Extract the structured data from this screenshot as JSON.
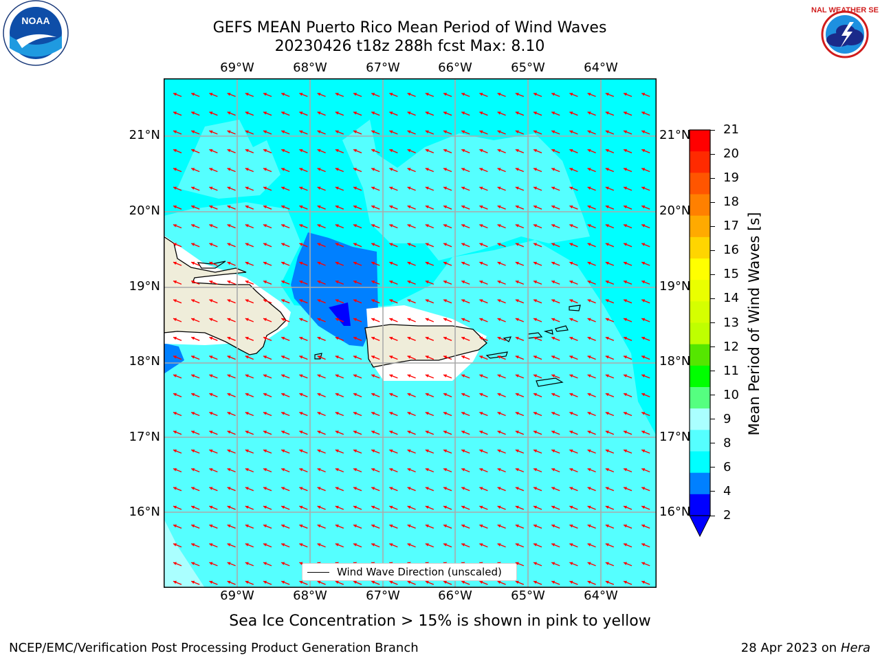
{
  "title": {
    "line1": "GEFS MEAN Puerto Rico Mean Period of Wind Waves",
    "line2": "20230426 t18z 288h fcst   Max: 8.10"
  },
  "map": {
    "lon_labels": [
      "69°W",
      "68°W",
      "67°W",
      "66°W",
      "65°W",
      "64°W"
    ],
    "lat_labels": [
      "21°N",
      "20°N",
      "19°N",
      "18°N",
      "17°N",
      "16°N"
    ],
    "legend_label": "Wind Wave Direction (unscaled)",
    "arrow_color": "#ff0000",
    "ocean_color": "#00ffff",
    "land_color": "#efedda"
  },
  "colorbar": {
    "label": "Mean Period of Wind Waves [s]",
    "ticks": [
      "21",
      "20",
      "19",
      "18",
      "17",
      "16",
      "15",
      "14",
      "13",
      "12",
      "11",
      "10",
      "9",
      "8",
      "6",
      "4",
      "2"
    ],
    "colors": [
      "#ff0000",
      "#ff2a00",
      "#ff5500",
      "#ff8000",
      "#ffaa00",
      "#ffd500",
      "#ffff00",
      "#eaff00",
      "#d5ff00",
      "#bfff00",
      "#55e600",
      "#00ff00",
      "#55ff80",
      "#aaffff",
      "#55ffff",
      "#00ffff",
      "#0080ff",
      "#0000ff"
    ]
  },
  "subtitle": "Sea Ice Concentration > 15% is shown in pink to yellow",
  "footer": {
    "left": "NCEP/EMC/Verification Post Processing Product Generation Branch",
    "date": "28 Apr 2023 on ",
    "machine": "Hera"
  },
  "logos": {
    "noaa": "NOAA",
    "nws": "NATIONAL WEATHER SERVICE"
  }
}
